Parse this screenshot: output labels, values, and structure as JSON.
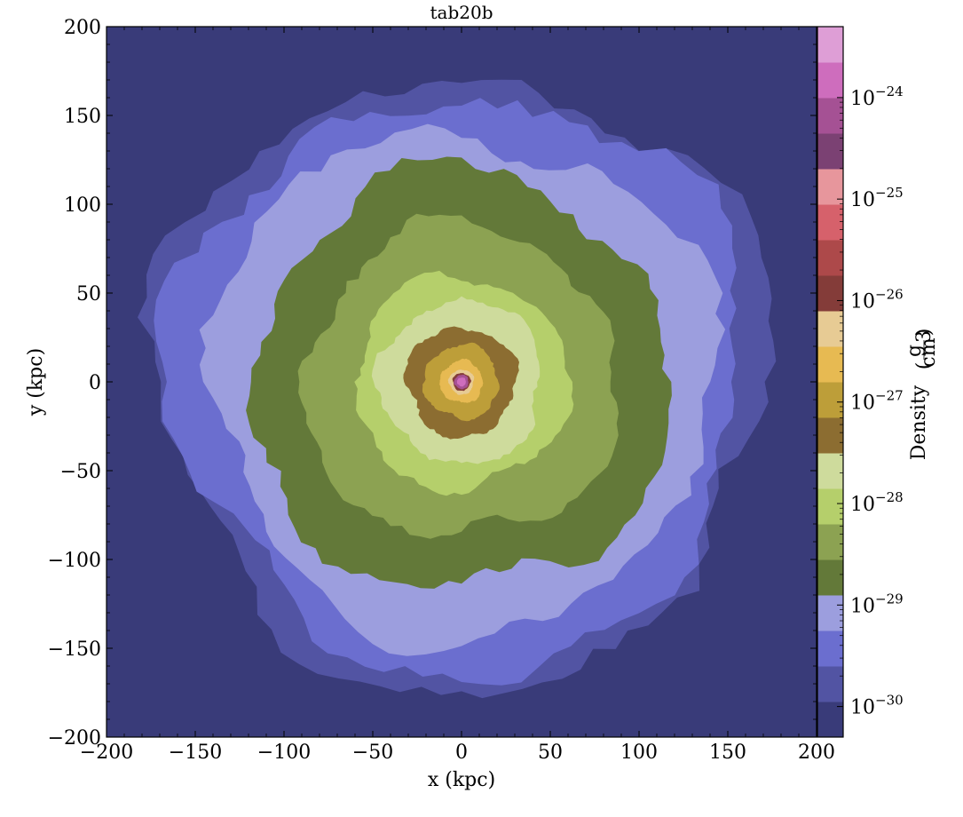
{
  "chart_data": {
    "type": "heatmap",
    "title": "tab20b",
    "xlabel": "x  (kpc)",
    "ylabel": "y  (kpc)",
    "xlim": [
      -200,
      200
    ],
    "ylim": [
      -200,
      200
    ],
    "x_ticks": [
      -200,
      -150,
      -100,
      -50,
      0,
      50,
      100,
      150,
      200
    ],
    "y_ticks": [
      -200,
      -150,
      -100,
      -50,
      0,
      50,
      100,
      150,
      200
    ],
    "x_tick_labels": [
      "−200",
      "−150",
      "−100",
      "−50",
      "0",
      "50",
      "100",
      "150",
      "200"
    ],
    "y_tick_labels": [
      "−200",
      "−150",
      "−100",
      "−50",
      "0",
      "50",
      "100",
      "150",
      "200"
    ],
    "colormap": "tab20b",
    "colorbar": {
      "label": "Density",
      "unit_numerator": "g",
      "unit_denominator": "cm",
      "unit_exponent": "3",
      "scale": "log",
      "range": [
        5e-31,
        5e-24
      ],
      "ticks": [
        1e-30,
        1e-29,
        1e-28,
        1e-27,
        1e-26,
        1e-25,
        1e-24
      ],
      "tick_mantissa": "10",
      "tick_exponents": [
        "−30",
        "−29",
        "−28",
        "−27",
        "−26",
        "−25",
        "−24"
      ],
      "colors": [
        "#393b79",
        "#5254a3",
        "#6b6ecf",
        "#9c9ede",
        "#637939",
        "#8ca252",
        "#b5cf6b",
        "#cedb9c",
        "#8c6d31",
        "#bd9e39",
        "#e7ba52",
        "#e7cb94",
        "#843c39",
        "#ad494a",
        "#d6616b",
        "#e7969c",
        "#7b4173",
        "#a55194",
        "#ce6dbd",
        "#de9ed6"
      ]
    },
    "contour_levels": [
      {
        "radius_kpc": 172,
        "color_index": 1
      },
      {
        "radius_kpc": 162,
        "color_index": 2
      },
      {
        "radius_kpc": 142,
        "color_index": 3
      },
      {
        "radius_kpc": 118,
        "color_index": 4
      },
      {
        "radius_kpc": 88,
        "color_index": 5
      },
      {
        "radius_kpc": 60,
        "color_index": 6
      },
      {
        "radius_kpc": 46,
        "color_index": 7
      },
      {
        "radius_kpc": 31,
        "color_index": 8
      },
      {
        "radius_kpc": 21,
        "color_index": 9
      },
      {
        "radius_kpc": 12,
        "color_index": 10
      },
      {
        "radius_kpc": 7,
        "color_index": 11
      },
      {
        "radius_kpc": 5,
        "color_index": 12
      },
      {
        "radius_kpc": 4,
        "color_index": 17
      },
      {
        "radius_kpc": 2.5,
        "color_index": 18
      }
    ]
  }
}
